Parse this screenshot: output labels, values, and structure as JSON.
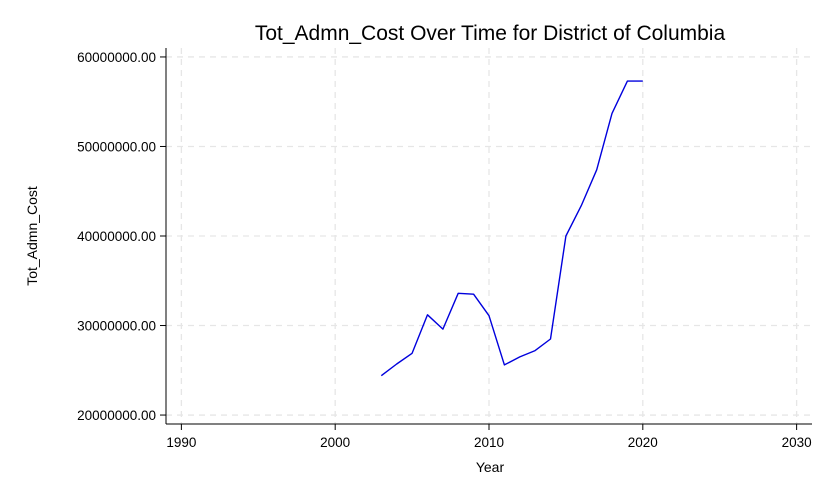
{
  "chart_data": {
    "type": "line",
    "title": "Tot_Admn_Cost Over Time for District of Columbia",
    "xlabel": "Year",
    "ylabel": "Tot_Admn_Cost",
    "xlim": [
      1989,
      2031
    ],
    "ylim": [
      19000000,
      61000000
    ],
    "x_ticks": [
      1990,
      2000,
      2010,
      2020,
      2030
    ],
    "x_tick_labels": [
      "1990",
      "2000",
      "2010",
      "2020",
      "2030"
    ],
    "y_ticks": [
      20000000,
      30000000,
      40000000,
      50000000,
      60000000
    ],
    "y_tick_labels": [
      "20000000.00",
      "30000000.00",
      "40000000.00",
      "50000000.00",
      "60000000.00"
    ],
    "grid": true,
    "line_color": "#0000dd",
    "series": [
      {
        "x": [
          2003,
          2004,
          2005,
          2006,
          2007,
          2008,
          2009,
          2010,
          2011,
          2012,
          2013,
          2014,
          2015,
          2016,
          2017,
          2018,
          2019,
          2020
        ],
        "values": [
          24400000,
          25700000,
          26900000,
          31200000,
          29600000,
          33600000,
          33500000,
          31100000,
          25600000,
          26500000,
          27200000,
          28500000,
          40000000,
          43400000,
          47400000,
          53700000,
          57300000,
          57300000
        ]
      }
    ]
  }
}
